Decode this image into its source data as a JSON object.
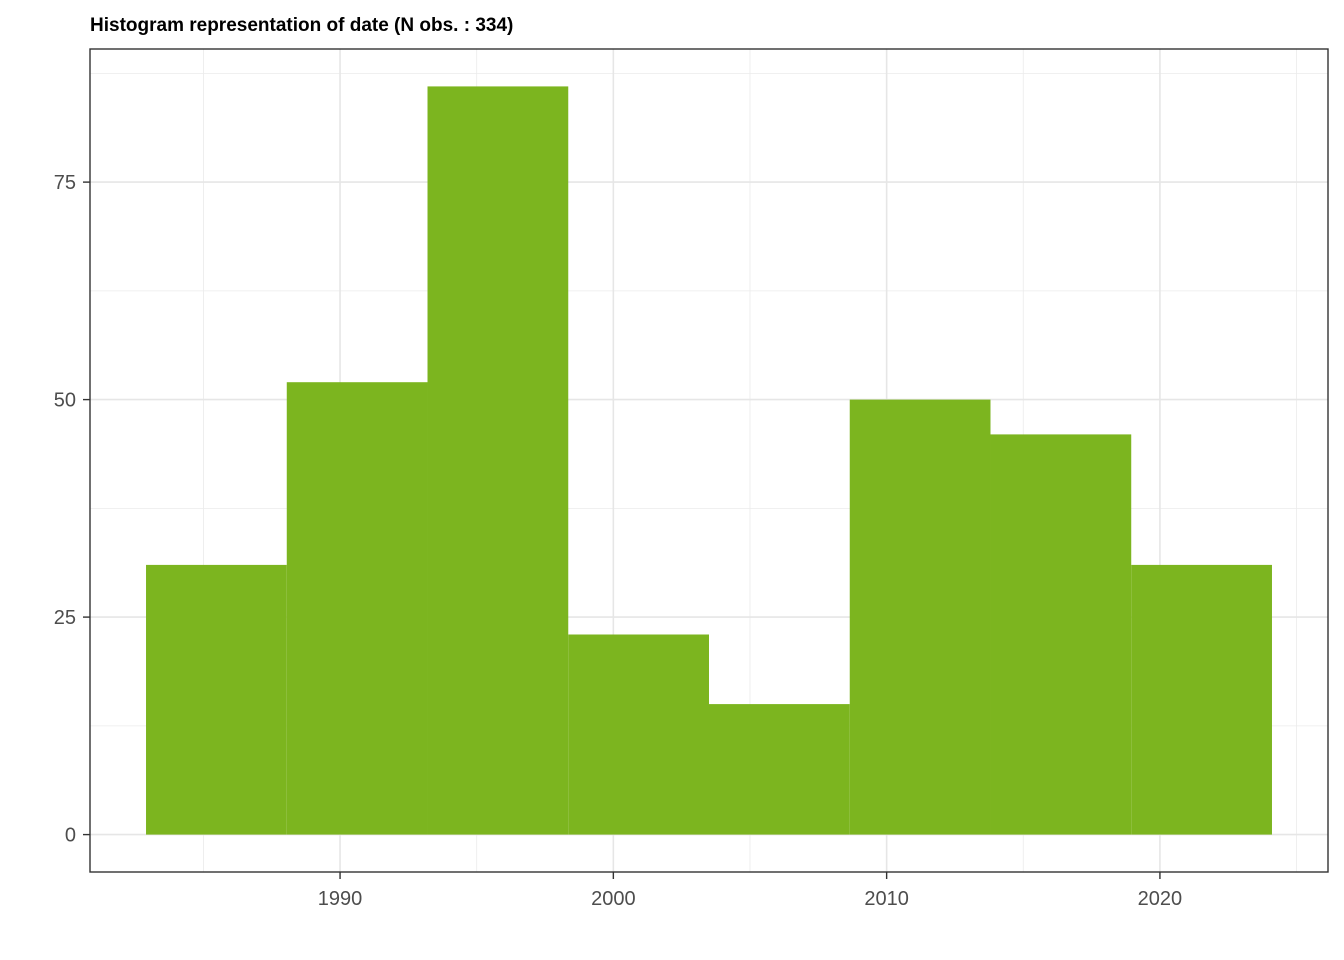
{
  "chart_data": {
    "type": "bar",
    "title": "Histogram representation of date (N obs. : 334)",
    "xlabel": "",
    "ylabel": "",
    "bins": [
      {
        "start": 1982.9,
        "end": 1988.05,
        "count": 31
      },
      {
        "start": 1988.05,
        "end": 1993.2,
        "count": 52
      },
      {
        "start": 1993.2,
        "end": 1998.35,
        "count": 86
      },
      {
        "start": 1998.35,
        "end": 2003.5,
        "count": 23
      },
      {
        "start": 2003.5,
        "end": 2008.65,
        "count": 15
      },
      {
        "start": 2008.65,
        "end": 2013.8,
        "count": 50
      },
      {
        "start": 2013.8,
        "end": 2018.95,
        "count": 46
      },
      {
        "start": 2018.95,
        "end": 2024.1,
        "count": 31
      }
    ],
    "xlim": [
      1980.85,
      2026.15
    ],
    "ylim": [
      -4.3,
      90.3
    ],
    "x_ticks": [
      1990,
      2000,
      2010,
      2020
    ],
    "x_tick_labels": [
      "1990",
      "2000",
      "2010",
      "2020"
    ],
    "y_ticks": [
      0,
      25,
      50,
      75
    ],
    "y_tick_labels": [
      "0",
      "25",
      "50",
      "75"
    ],
    "grid": true,
    "bar_color": "#7cb51f",
    "legend": "none"
  }
}
